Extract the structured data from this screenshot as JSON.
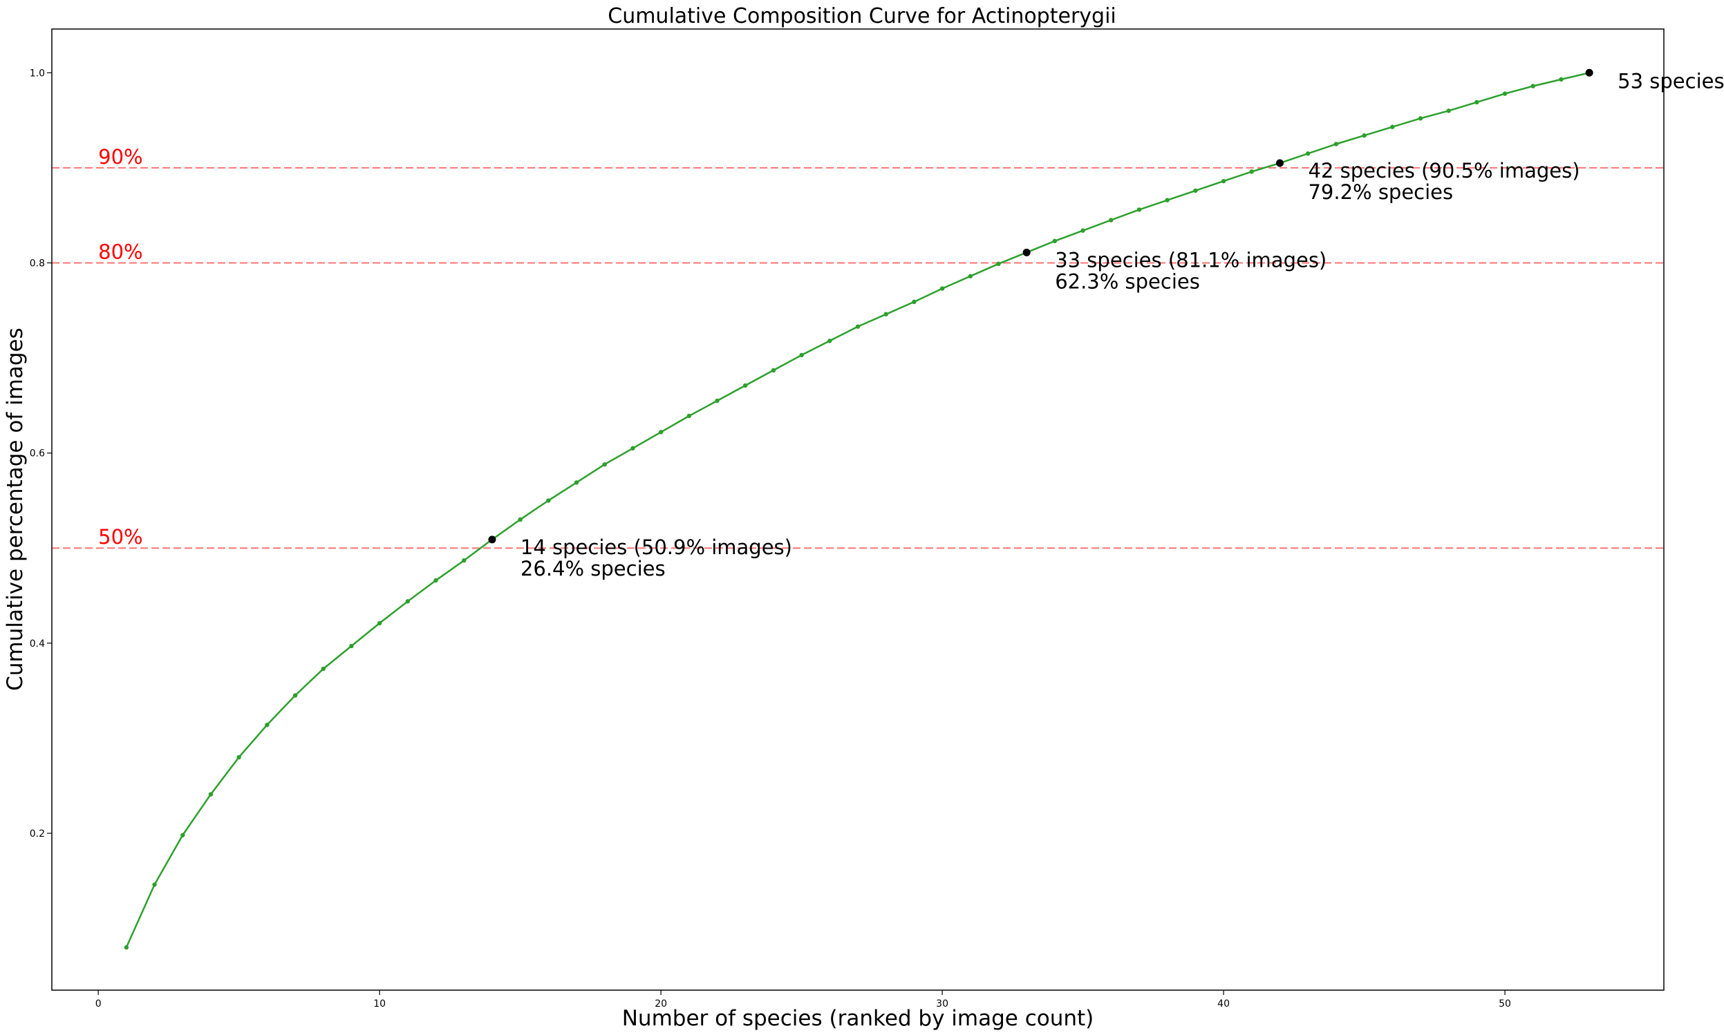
{
  "chart_data": {
    "type": "line",
    "title": "Cumulative Composition Curve for Actinopterygii",
    "xlabel": "Number of species (ranked by image count)",
    "ylabel": "Cumulative percentage of images",
    "xlim": [
      -1.65,
      55.65
    ],
    "ylim": [
      0.035,
      1.046
    ],
    "xticks": [
      0,
      10,
      20,
      30,
      40,
      50
    ],
    "yticks": [
      0.2,
      0.4,
      0.6,
      0.8,
      1.0
    ],
    "xtick_labels": [
      "0",
      "10",
      "20",
      "30",
      "40",
      "50"
    ],
    "ytick_labels": [
      "0.2",
      "0.4",
      "0.6",
      "0.8",
      "1.0"
    ],
    "grid": false,
    "line_color": "#2ca02c",
    "threshold_color": "#ff0000",
    "highlight_color": "#000000",
    "series": [
      {
        "x": [
          1,
          2,
          3,
          4,
          5,
          6,
          7,
          8,
          9,
          10,
          11,
          12,
          13,
          14,
          15,
          16,
          17,
          18,
          19,
          20,
          21,
          22,
          23,
          24,
          25,
          26,
          27,
          28,
          29,
          30,
          31,
          32,
          33,
          34,
          35,
          36,
          37,
          38,
          39,
          40,
          41,
          42,
          43,
          44,
          45,
          46,
          47,
          48,
          49,
          50,
          51,
          52,
          53
        ],
        "y": [
          0.08,
          0.146,
          0.198,
          0.241,
          0.28,
          0.314,
          0.345,
          0.373,
          0.397,
          0.421,
          0.444,
          0.466,
          0.487,
          0.509,
          0.53,
          0.55,
          0.569,
          0.588,
          0.605,
          0.622,
          0.639,
          0.655,
          0.671,
          0.687,
          0.703,
          0.718,
          0.733,
          0.746,
          0.759,
          0.773,
          0.786,
          0.799,
          0.811,
          0.823,
          0.834,
          0.845,
          0.856,
          0.866,
          0.876,
          0.886,
          0.896,
          0.905,
          0.915,
          0.925,
          0.934,
          0.943,
          0.952,
          0.96,
          0.969,
          0.978,
          0.986,
          0.993,
          1.0
        ]
      }
    ],
    "thresholds": [
      {
        "y": 0.9,
        "label": "90%"
      },
      {
        "y": 0.8,
        "label": "80%"
      },
      {
        "y": 0.5,
        "label": "50%"
      }
    ],
    "highlights": [
      {
        "x": 14,
        "y": 0.509,
        "line1": "14 species (50.9% images)",
        "line2": "26.4% species"
      },
      {
        "x": 33,
        "y": 0.811,
        "line1": "33 species (81.1% images)",
        "line2": "62.3% species"
      },
      {
        "x": 42,
        "y": 0.905,
        "line1": "42 species (90.5% images)",
        "line2": "79.2% species"
      },
      {
        "x": 53,
        "y": 1.0,
        "line1": "53 species",
        "line2": ""
      }
    ]
  }
}
